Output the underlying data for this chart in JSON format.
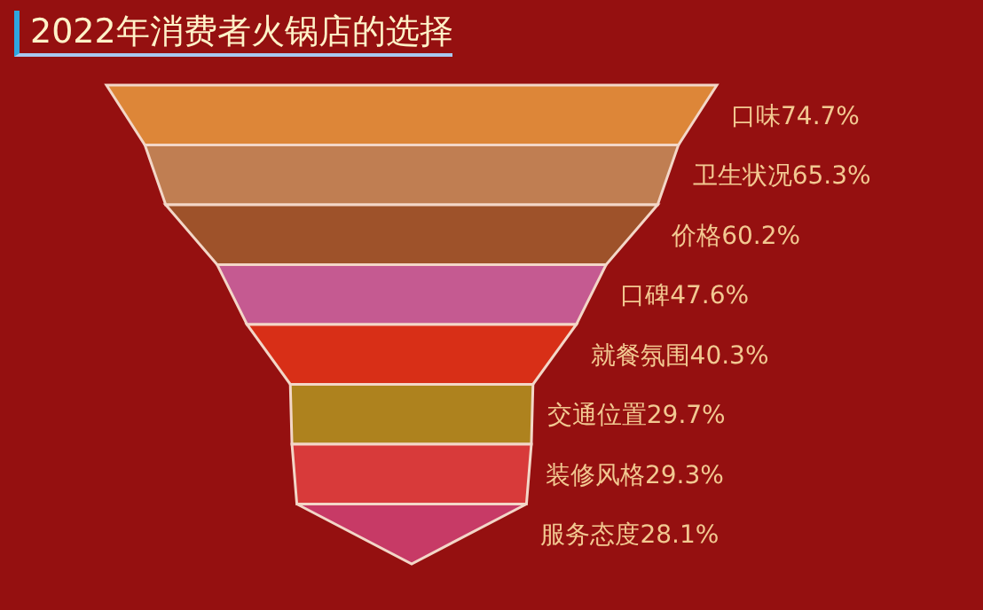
{
  "chart_data": {
    "type": "other",
    "title": "2022年消费者火锅店的选择",
    "categories": [
      "口味",
      "卫生状况",
      "价格",
      "口碑",
      "就餐氛围",
      "交通位置",
      "装修风格",
      "服务态度"
    ],
    "values": [
      74.7,
      65.3,
      60.2,
      47.6,
      40.3,
      29.7,
      29.3,
      28.1
    ],
    "value_labels": [
      "74.7%",
      "65.3%",
      "60.2%",
      "47.6%",
      "40.3%",
      "29.7%",
      "29.3%",
      "28.1%"
    ],
    "colors": [
      "#dd8638",
      "#c07e52",
      "#9e522a",
      "#c55a91",
      "#d82f17",
      "#ae821e",
      "#d83a3a",
      "#c73a66"
    ]
  }
}
